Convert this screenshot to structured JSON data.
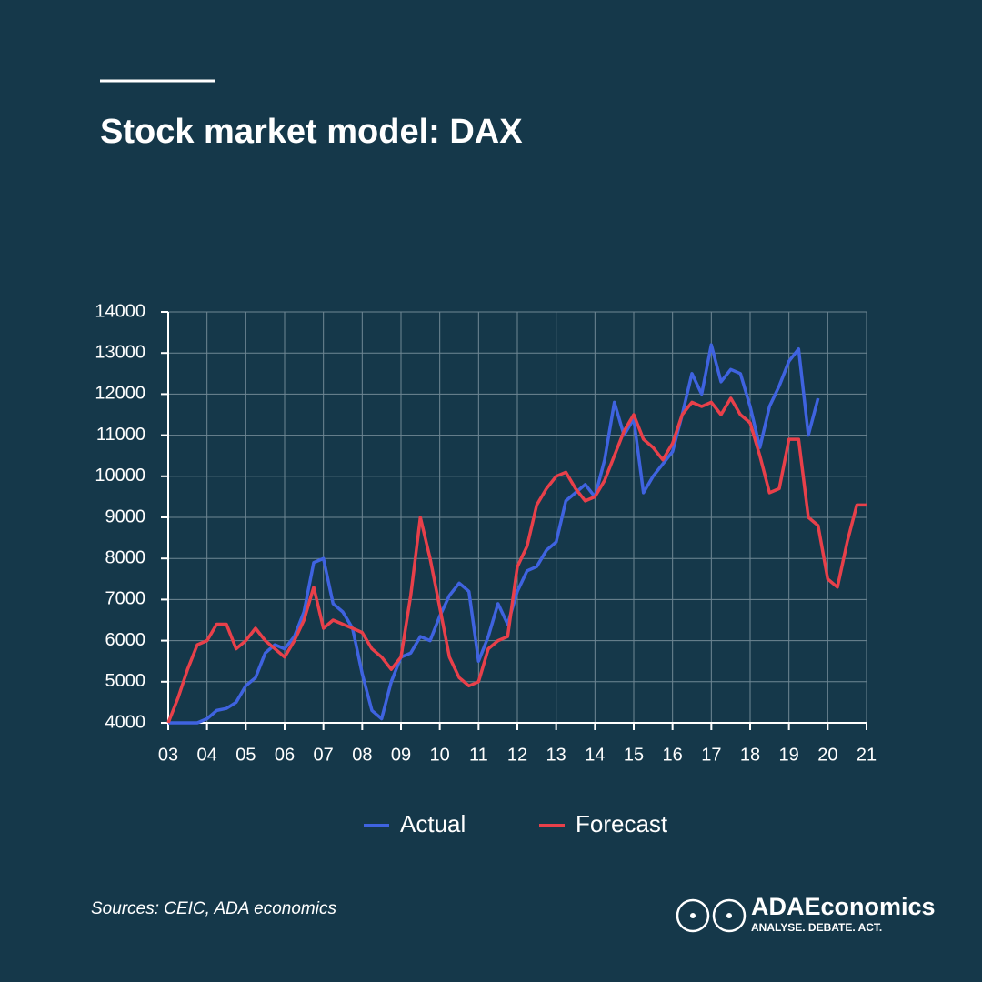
{
  "chart_data": {
    "type": "line",
    "title": "Stock market model: DAX",
    "source": "Sources: CEIC, ADA economics",
    "brand": "ADAEconomics",
    "tagline": "ANALYSE. DEBATE. ACT.",
    "x": [
      3,
      3.25,
      3.5,
      3.75,
      4,
      4.25,
      4.5,
      4.75,
      5,
      5.25,
      5.5,
      5.75,
      6,
      6.25,
      6.5,
      6.75,
      7,
      7.25,
      7.5,
      7.75,
      8,
      8.25,
      8.5,
      8.75,
      9,
      9.25,
      9.5,
      9.75,
      10,
      10.25,
      10.5,
      10.75,
      11,
      11.25,
      11.5,
      11.75,
      12,
      12.25,
      12.5,
      12.75,
      13,
      13.25,
      13.5,
      13.75,
      14,
      14.25,
      14.5,
      14.75,
      15,
      15.25,
      15.5,
      15.75,
      16,
      16.25,
      16.5,
      16.75,
      17,
      17.25,
      17.5,
      17.75,
      18,
      18.25,
      18.5,
      18.75,
      19,
      19.25,
      19.5,
      19.75,
      20,
      20.25,
      20.5,
      20.75,
      21
    ],
    "series": [
      {
        "name": "Actual",
        "color": "#3f63e0",
        "values": [
          4000,
          4000,
          4000,
          4000,
          4100,
          4300,
          4350,
          4500,
          4900,
          5100,
          5700,
          5900,
          5800,
          6100,
          6700,
          7900,
          8000,
          6900,
          6700,
          6300,
          5200,
          4300,
          4100,
          5000,
          5600,
          5700,
          6100,
          6000,
          6600,
          7100,
          7400,
          7200,
          5500,
          6100,
          6900,
          6400,
          7200,
          7700,
          7800,
          8200,
          8400,
          9400,
          9600,
          9800,
          9500,
          10400,
          11800,
          11000,
          11400,
          9600,
          10000,
          10300,
          10600,
          11500,
          12500,
          12000,
          13200,
          12300,
          12600,
          12500,
          11700,
          10700,
          11700,
          12200,
          12800,
          13100,
          11000,
          11900,
          null,
          null,
          null,
          null,
          null
        ]
      },
      {
        "name": "Forecast",
        "color": "#e8404a",
        "values": [
          4000,
          4600,
          5300,
          5900,
          6000,
          6400,
          6400,
          5800,
          6000,
          6300,
          6000,
          5800,
          5600,
          6000,
          6500,
          7300,
          6300,
          6500,
          6400,
          6300,
          6200,
          5800,
          5600,
          5300,
          5600,
          7100,
          9000,
          8000,
          6800,
          5600,
          5100,
          4900,
          5000,
          5800,
          6000,
          6100,
          7800,
          8300,
          9300,
          9700,
          10000,
          10100,
          9700,
          9400,
          9500,
          9900,
          10500,
          11100,
          11500,
          10900,
          10700,
          10400,
          10800,
          11500,
          11800,
          11700,
          11800,
          11500,
          11900,
          11500,
          11300,
          10500,
          9600,
          9700,
          10900,
          10900,
          9000,
          8800,
          7500,
          7300,
          8400,
          9300,
          9300
        ]
      }
    ],
    "xlim": [
      3,
      21
    ],
    "xticks": [
      {
        "value": 3,
        "label": "03"
      },
      {
        "value": 4,
        "label": "04"
      },
      {
        "value": 5,
        "label": "05"
      },
      {
        "value": 6,
        "label": "06"
      },
      {
        "value": 7,
        "label": "07"
      },
      {
        "value": 8,
        "label": "08"
      },
      {
        "value": 9,
        "label": "09"
      },
      {
        "value": 10,
        "label": "10"
      },
      {
        "value": 11,
        "label": "11"
      },
      {
        "value": 12,
        "label": "12"
      },
      {
        "value": 13,
        "label": "13"
      },
      {
        "value": 14,
        "label": "14"
      },
      {
        "value": 15,
        "label": "15"
      },
      {
        "value": 16,
        "label": "16"
      },
      {
        "value": 17,
        "label": "17"
      },
      {
        "value": 18,
        "label": "18"
      },
      {
        "value": 19,
        "label": "19"
      },
      {
        "value": 20,
        "label": "20"
      },
      {
        "value": 21,
        "label": "21"
      }
    ],
    "ylim": [
      4000,
      14000
    ],
    "yticks": [
      4000,
      5000,
      6000,
      7000,
      8000,
      9000,
      10000,
      11000,
      12000,
      13000,
      14000
    ],
    "grid": true,
    "legend": "bottom"
  }
}
